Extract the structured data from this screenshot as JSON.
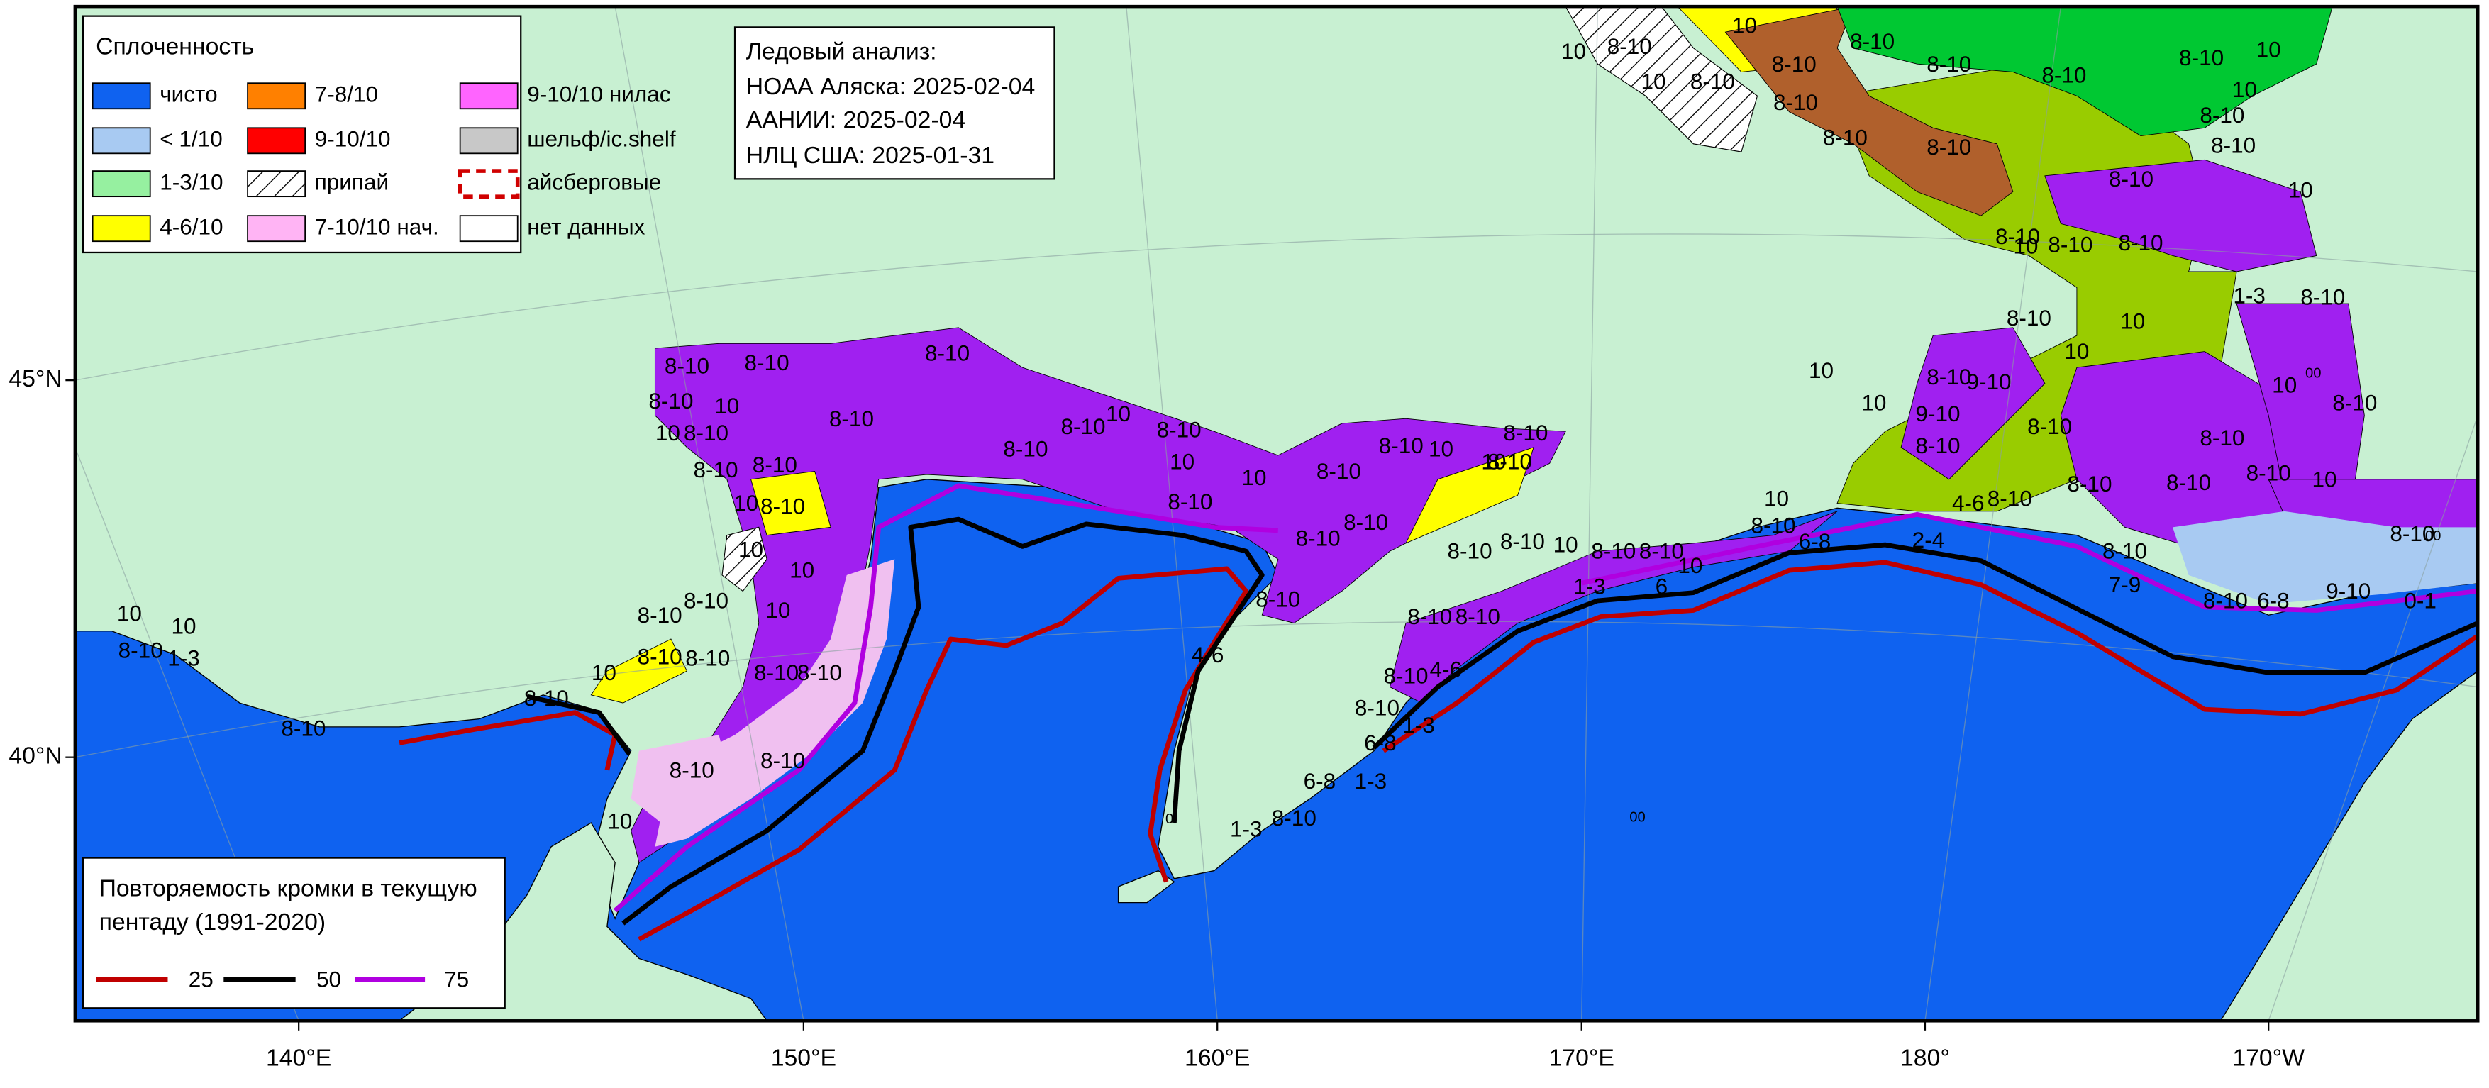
{
  "legend": {
    "title": "Сплоченность",
    "items": [
      {
        "label": "чисто",
        "color": "#0f62f0"
      },
      {
        "label": "< 1/10",
        "color": "#a8caf2"
      },
      {
        "label": "1-3/10",
        "color": "#96f0a0"
      },
      {
        "label": "4-6/10",
        "color": "#ffff00"
      },
      {
        "label": "7-8/10",
        "color": "#ff8000"
      },
      {
        "label": "9-10/10",
        "color": "#ff0000"
      },
      {
        "label": "припай",
        "color": "#ffffff"
      },
      {
        "label": "7-10/10 нач.",
        "color": "#ffb4f4"
      },
      {
        "label": "9-10/10 нилас",
        "color": "#ff64ff"
      },
      {
        "label": "шельф/ic.shelf",
        "color": "#c8c8c8"
      },
      {
        "label": "айсберговые",
        "color": "#d00000"
      },
      {
        "label": "нет данных",
        "color": "#ffffff"
      }
    ]
  },
  "info": {
    "title": "Ледовый анализ:",
    "lines": [
      "НОАА Аляска: 2025-02-04",
      "ААНИИ: 2025-02-04",
      "НЛЦ США: 2025-01-31"
    ]
  },
  "recurrence": {
    "title": "Повторяемость кромки в текущую",
    "subtitle": "пентаду (1991-2020)",
    "lines": [
      {
        "name": "25",
        "color": "#c00000"
      },
      {
        "name": "50",
        "color": "#000000"
      },
      {
        "name": "75",
        "color": "#b000e0"
      }
    ]
  },
  "axes": {
    "lon_labels": [
      "140°E",
      "150°E",
      "160°E",
      "170°E",
      "180°",
      "170°W"
    ],
    "lat_labels": [
      "45°N",
      "40°N"
    ]
  },
  "map_labels": [
    "8-10",
    "8-10",
    "8-10",
    "8-10",
    "10",
    "8-10",
    "10",
    "8-10",
    "8-10",
    "8-10",
    "10",
    "8-10",
    "10",
    "8-10",
    "8-10",
    "10",
    "8-10",
    "10",
    "10",
    "8-10",
    "8-10",
    "8-10",
    "10",
    "10",
    "8-10",
    "8-10",
    "8-10",
    "8-10",
    "8-10",
    "4-6",
    "10",
    "10",
    "8-10",
    "8-10",
    "8-10",
    "8-10",
    "10",
    "8-10",
    "8-10",
    "10",
    "10",
    "8-10",
    "1-3",
    "8-10",
    "8-10",
    "8-10",
    "8-10",
    "10",
    "0",
    "1-3",
    "8-10",
    "6-8",
    "1-3",
    "6-8",
    "1-3",
    "8-10",
    "8-10",
    "4-6",
    "8-10",
    "8-10",
    "8-10",
    "8-10",
    "10",
    "8-10",
    "8-10",
    "10",
    "1-3",
    "6",
    "6-8",
    "2-4",
    "4-6",
    "8-10",
    "8-10",
    "10",
    "8-10",
    "8-10",
    "8-10",
    "8-10",
    "8-10",
    "7-9",
    "8-10",
    "6-8",
    "9-10",
    "0-1",
    "8-10",
    "9-10",
    "8-10",
    "8-10",
    "9-10",
    "10",
    "10",
    "8-10",
    "10",
    "10",
    "1-3",
    "8-10",
    "8-10",
    "8-10",
    "8-10",
    "8-10",
    "8-10",
    "8-10",
    "8-10",
    "8-10",
    "8-10",
    "8-10",
    "8-10",
    "8-10",
    "10",
    "10",
    "8-10",
    "8-10",
    "10",
    "10",
    "8-10",
    "10",
    "10",
    "8-10",
    "10",
    "8-10",
    "8-10",
    "10",
    "10",
    "00",
    "00",
    "00"
  ]
}
